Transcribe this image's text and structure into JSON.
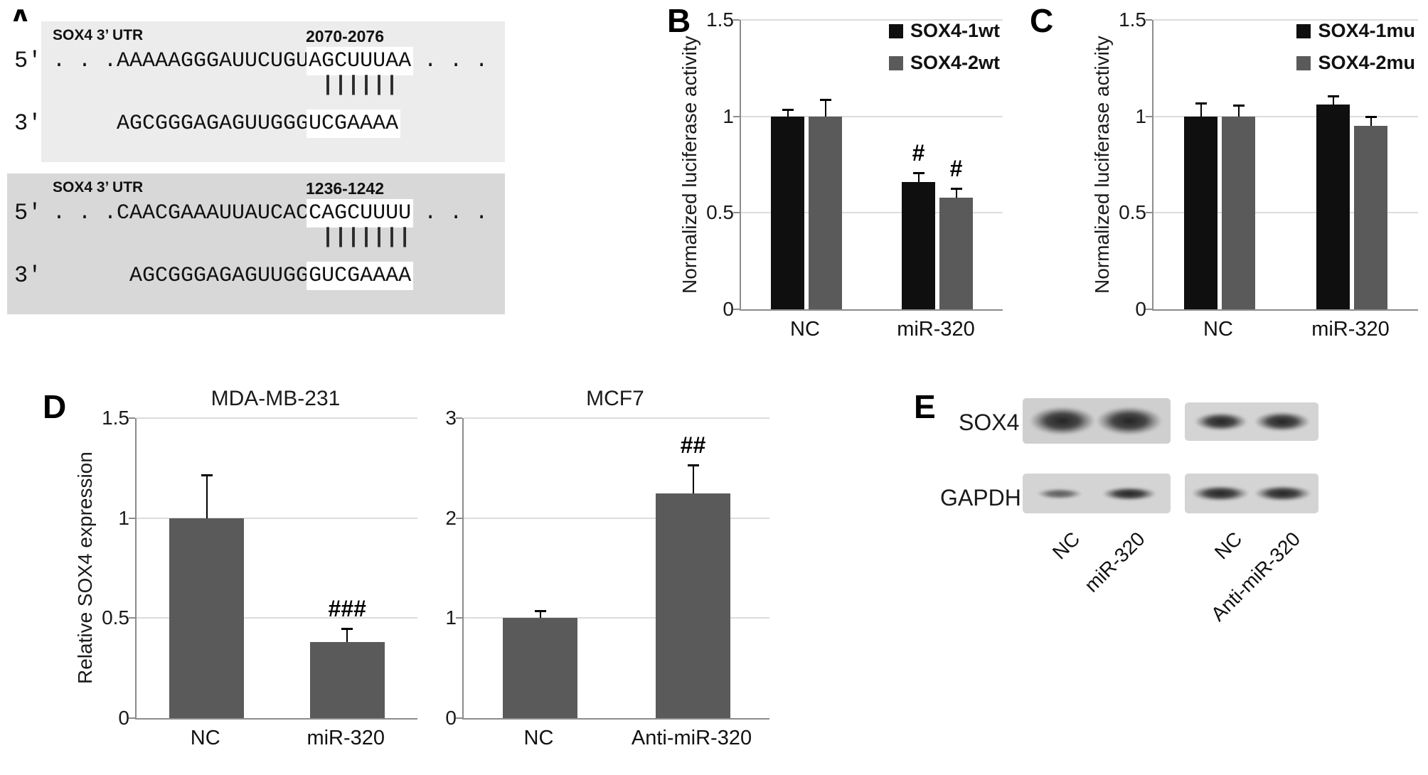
{
  "panel_labels": {
    "a": "A",
    "b": "B",
    "c": "C",
    "d": "D",
    "e": "E"
  },
  "panel_a": {
    "alignments": [
      {
        "gene_label": "SOX4 3’ UTR",
        "position_range": "2070-2076",
        "top_prime": "5'",
        "bottom_prime": "3'",
        "top_pre": ". . .AAAAAGGGAUUCUGU",
        "top_match": "AGCUUUAA",
        "top_post": " . . .",
        "pair_bars": "||||||",
        "bottom_pre": "AGCGGGAGAGUUGGG",
        "bottom_match": "UCGAAAA"
      },
      {
        "gene_label": "SOX4 3’ UTR",
        "position_range": "1236-1242",
        "top_prime": "5'",
        "bottom_prime": "3'",
        "top_pre": ". . .CAACGAAAUUAUCAC",
        "top_match": "CAGCUUUU",
        "top_post": " . . .",
        "pair_bars": "|||||||",
        "bottom_pre": "AGCGGGAGAGUUGG",
        "bottom_match": "GUCGAAAA"
      }
    ]
  },
  "panel_e": {
    "row_labels": [
      "SOX4",
      "GAPDH"
    ],
    "lane_labels": [
      "NC",
      "miR-320",
      "NC",
      "Anti-miR-320"
    ]
  },
  "chart_data": [
    {
      "id": "B",
      "type": "bar",
      "title": "",
      "ylabel": "Normalized luciferase activity",
      "ylim": [
        0,
        1.5
      ],
      "yticks": [
        0,
        0.5,
        1,
        1.5
      ],
      "grid": true,
      "legend": true,
      "categories": [
        "NC",
        "miR-320"
      ],
      "series": [
        {
          "name": "SOX4-1wt",
          "color": "#0f0f0f",
          "values": [
            1.0,
            0.66
          ],
          "errors": [
            0.03,
            0.04
          ]
        },
        {
          "name": "SOX4-2wt",
          "color": "#5a5a5a",
          "values": [
            1.0,
            0.58
          ],
          "errors": [
            0.08,
            0.04
          ]
        }
      ],
      "annotations": [
        {
          "category": 1,
          "series": 0,
          "text": "#"
        },
        {
          "category": 1,
          "series": 1,
          "text": "#"
        }
      ]
    },
    {
      "id": "C",
      "type": "bar",
      "title": "",
      "ylabel": "Normalized luciferase activity",
      "ylim": [
        0,
        1.5
      ],
      "yticks": [
        0,
        0.5,
        1,
        1.5
      ],
      "grid": true,
      "legend": true,
      "categories": [
        "NC",
        "miR-320"
      ],
      "series": [
        {
          "name": "SOX4-1mu",
          "color": "#0f0f0f",
          "values": [
            1.0,
            1.06
          ],
          "errors": [
            0.06,
            0.04
          ]
        },
        {
          "name": "SOX4-2mu",
          "color": "#5a5a5a",
          "values": [
            1.0,
            0.95
          ],
          "errors": [
            0.05,
            0.04
          ]
        }
      ],
      "annotations": []
    },
    {
      "id": "D-MDA-MB-231",
      "type": "bar",
      "title": "MDA-MB-231",
      "ylabel": "Relative SOX4 expression",
      "ylim": [
        0,
        1.5
      ],
      "yticks": [
        0,
        0.5,
        1,
        1.5
      ],
      "grid": true,
      "legend": false,
      "categories": [
        "NC",
        "miR-320"
      ],
      "series": [
        {
          "name": "",
          "color": "#5a5a5a",
          "values": [
            1.0,
            0.38
          ],
          "errors": [
            0.21,
            0.06
          ]
        }
      ],
      "annotations": [
        {
          "category": 1,
          "series": 0,
          "text": "###"
        }
      ]
    },
    {
      "id": "D-MCF7",
      "type": "bar",
      "title": "MCF7",
      "ylabel": "",
      "ylim": [
        0,
        3
      ],
      "yticks": [
        0,
        1,
        2,
        3
      ],
      "grid": true,
      "legend": false,
      "categories": [
        "NC",
        "Anti-miR-320"
      ],
      "series": [
        {
          "name": "",
          "color": "#5a5a5a",
          "values": [
            1.0,
            2.25
          ],
          "errors": [
            0.06,
            0.27
          ]
        }
      ],
      "annotations": [
        {
          "category": 1,
          "series": 0,
          "text": "##"
        }
      ]
    }
  ]
}
